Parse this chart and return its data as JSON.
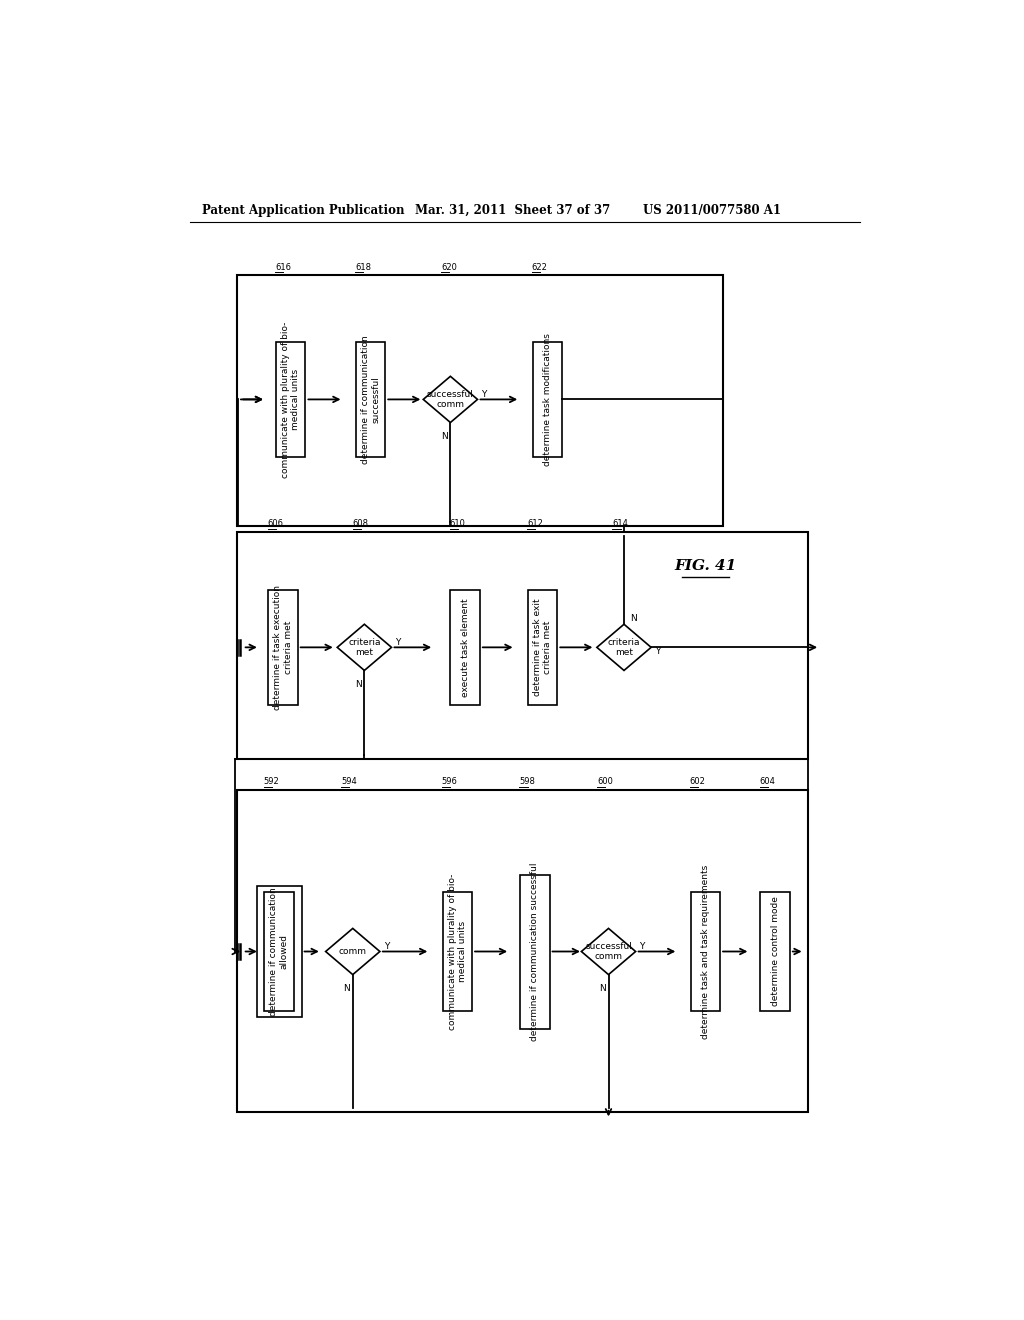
{
  "bg_color": "#ffffff",
  "header_left": "Patent Application Publication",
  "header_mid": "Mar. 31, 2011  Sheet 37 of 37",
  "header_right": "US 2011/0077580 A1",
  "fig_label": "FIG. 41"
}
